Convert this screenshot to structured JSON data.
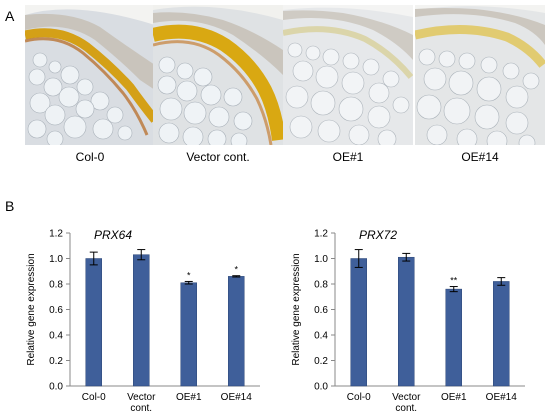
{
  "panel_a": {
    "letter": "A",
    "images": [
      {
        "caption": "Col-0",
        "lignin_stain": "strong"
      },
      {
        "caption": "Vector cont.",
        "lignin_stain": "strong"
      },
      {
        "caption": "OE#1",
        "lignin_stain": "weak"
      },
      {
        "caption": "OE#14",
        "lignin_stain": "weak"
      }
    ]
  },
  "panel_b": {
    "letter": "B"
  },
  "colors": {
    "bar": "#3f5f9a",
    "bar_edge": "#2c4777",
    "axis": "#888888"
  },
  "chart_data": [
    {
      "type": "bar",
      "title": "PRX64",
      "ylabel": "Relative gene expression",
      "xlabel": "",
      "ylim": [
        0,
        1.2
      ],
      "yticks": [
        "0.0",
        "0.2",
        "0.4",
        "0.6",
        "0.8",
        "1.0",
        "1.2"
      ],
      "categories": [
        [
          "Col-0"
        ],
        [
          "Vector",
          "cont."
        ],
        [
          "OE#1"
        ],
        [
          "OE#14"
        ]
      ],
      "values": [
        1.0,
        1.03,
        0.81,
        0.86
      ],
      "errors": [
        0.05,
        0.04,
        0.01,
        0.005
      ],
      "significance": [
        "",
        "",
        "*",
        "*"
      ],
      "grid": false,
      "legend": "none"
    },
    {
      "type": "bar",
      "title": "PRX72",
      "ylabel": "Relative gene expression",
      "xlabel": "",
      "ylim": [
        0,
        1.2
      ],
      "yticks": [
        "0.0",
        "0.2",
        "0.4",
        "0.6",
        "0.8",
        "1.0",
        "1.2"
      ],
      "categories": [
        [
          "Col-0"
        ],
        [
          "Vector",
          "cont."
        ],
        [
          "OE#1"
        ],
        [
          "OE#14"
        ]
      ],
      "values": [
        1.0,
        1.01,
        0.76,
        0.82
      ],
      "errors": [
        0.07,
        0.03,
        0.02,
        0.03
      ],
      "significance": [
        "",
        "",
        "**",
        ""
      ],
      "grid": false,
      "legend": "none"
    }
  ]
}
